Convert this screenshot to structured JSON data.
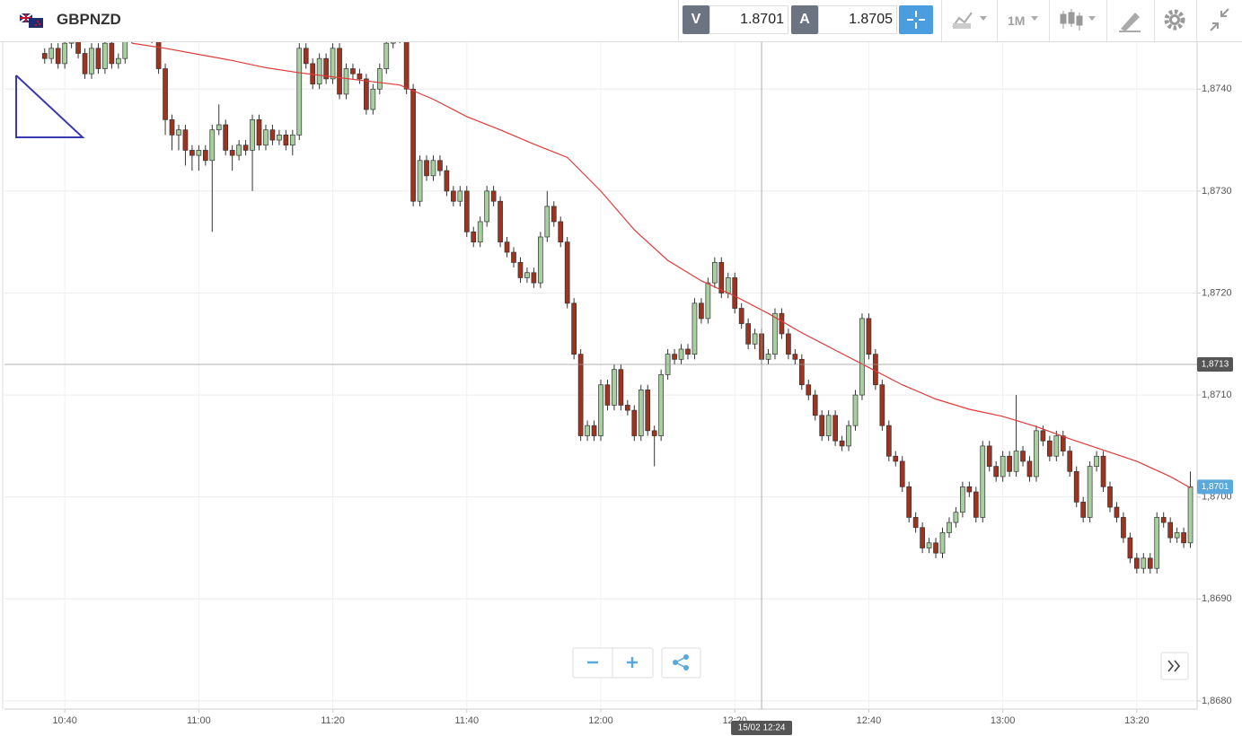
{
  "toolbar": {
    "symbol": "GBPNZD",
    "bid_label": "V",
    "bid": 1.8701,
    "ask_label": "A",
    "ask": 1.8705,
    "timeframe": "1M"
  },
  "chart_data": {
    "type": "candlestick",
    "up_color": "#a8cfa0",
    "down_color": "#9e3320",
    "ma_color": "#e03a3a",
    "xlim": [
      "10:31",
      "13:29"
    ],
    "xticks": [
      "10:40",
      "11:00",
      "11:20",
      "11:40",
      "12:00",
      "12:20",
      "12:40",
      "13:00",
      "13:20"
    ],
    "ylim": [
      1.86792,
      1.87446
    ],
    "yticks": [
      {
        "value": 1.868,
        "label": "1,8680"
      },
      {
        "value": 1.869,
        "label": "1,8690"
      },
      {
        "value": 1.87,
        "label": "1,8700"
      },
      {
        "value": 1.871,
        "label": "1,8710"
      },
      {
        "value": 1.872,
        "label": "1,8720"
      },
      {
        "value": 1.873,
        "label": "1,8730"
      },
      {
        "value": 1.874,
        "label": "1,8740"
      }
    ],
    "grid": true,
    "crosshair": {
      "x": "12:24",
      "x_label": "15/02 12:24",
      "y": 1.8713,
      "y_label": "1,8713"
    },
    "last_price": {
      "value": 1.8701,
      "label": "1,8701"
    },
    "x": [
      "10:37",
      "10:38",
      "10:39",
      "10:40",
      "10:41",
      "10:42",
      "10:43",
      "10:44",
      "10:45",
      "10:46",
      "10:47",
      "10:48",
      "10:49",
      "10:50",
      "10:51",
      "10:52",
      "10:53",
      "10:54",
      "10:55",
      "10:56",
      "10:57",
      "10:58",
      "10:59",
      "11:00",
      "11:01",
      "11:02",
      "11:03",
      "11:04",
      "11:05",
      "11:06",
      "11:07",
      "11:08",
      "11:09",
      "11:10",
      "11:11",
      "11:12",
      "11:13",
      "11:14",
      "11:15",
      "11:16",
      "11:17",
      "11:18",
      "11:19",
      "11:20",
      "11:21",
      "11:22",
      "11:23",
      "11:24",
      "11:25",
      "11:26",
      "11:27",
      "11:28",
      "11:29",
      "11:30",
      "11:31",
      "11:32",
      "11:33",
      "11:34",
      "11:35",
      "11:36",
      "11:37",
      "11:38",
      "11:39",
      "11:40",
      "11:41",
      "11:42",
      "11:43",
      "11:44",
      "11:45",
      "11:46",
      "11:47",
      "11:48",
      "11:49",
      "11:50",
      "11:51",
      "11:52",
      "11:53",
      "11:54",
      "11:55",
      "11:56",
      "11:57",
      "11:58",
      "11:59",
      "12:00",
      "12:01",
      "12:02",
      "12:03",
      "12:04",
      "12:05",
      "12:06",
      "12:07",
      "12:08",
      "12:09",
      "12:10",
      "12:11",
      "12:12",
      "12:13",
      "12:14",
      "12:15",
      "12:16",
      "12:17",
      "12:18",
      "12:19",
      "12:20",
      "12:21",
      "12:22",
      "12:23",
      "12:24",
      "12:25",
      "12:26",
      "12:27",
      "12:28",
      "12:29",
      "12:30",
      "12:31",
      "12:32",
      "12:33",
      "12:34",
      "12:35",
      "12:36",
      "12:37",
      "12:38",
      "12:39",
      "12:40",
      "12:41",
      "12:42",
      "12:43",
      "12:44",
      "12:45",
      "12:46",
      "12:47",
      "12:48",
      "12:49",
      "12:50",
      "12:51",
      "12:52",
      "12:53",
      "12:54",
      "12:55",
      "12:56",
      "12:57",
      "12:58",
      "12:59",
      "13:00",
      "13:01",
      "13:02",
      "13:03",
      "13:04",
      "13:05",
      "13:06",
      "13:07",
      "13:08",
      "13:09",
      "13:10",
      "13:11",
      "13:12",
      "13:13",
      "13:14",
      "13:15",
      "13:16",
      "13:17",
      "13:18",
      "13:19",
      "13:20",
      "13:21",
      "13:22",
      "13:23",
      "13:24",
      "13:25",
      "13:26",
      "13:27",
      "13:28"
    ],
    "open": [
      1.87435,
      1.8743,
      1.8744,
      1.87425,
      1.87445,
      1.8745,
      1.87435,
      1.87415,
      1.8744,
      1.8742,
      1.87445,
      1.87425,
      1.8743,
      1.8745,
      1.87455,
      1.8746,
      1.87455,
      1.8745,
      1.8742,
      1.8737,
      1.87355,
      1.8736,
      1.8734,
      1.87335,
      1.8734,
      1.8733,
      1.8736,
      1.87365,
      1.8734,
      1.87335,
      1.87345,
      1.8734,
      1.8737,
      1.87345,
      1.8736,
      1.8735,
      1.87355,
      1.87345,
      1.87355,
      1.8744,
      1.87425,
      1.87405,
      1.8743,
      1.8741,
      1.8744,
      1.87395,
      1.8742,
      1.87415,
      1.8741,
      1.8738,
      1.874,
      1.8742,
      1.87445,
      1.8745,
      1.87455,
      1.874,
      1.8729,
      1.8733,
      1.87315,
      1.8733,
      1.8732,
      1.873,
      1.8729,
      1.873,
      1.8726,
      1.8725,
      1.8727,
      1.873,
      1.8729,
      1.8725,
      1.8724,
      1.8723,
      1.87215,
      1.8722,
      1.8721,
      1.87255,
      1.87285,
      1.8727,
      1.8725,
      1.8719,
      1.8714,
      1.8706,
      1.8707,
      1.8706,
      1.8711,
      1.8709,
      1.87125,
      1.8709,
      1.87085,
      1.8706,
      1.87105,
      1.87065,
      1.8706,
      1.8712,
      1.8714,
      1.87135,
      1.87145,
      1.8714,
      1.8719,
      1.87175,
      1.8721,
      1.8723,
      1.872,
      1.87215,
      1.87185,
      1.8717,
      1.8715,
      1.8716,
      1.87135,
      1.8714,
      1.8718,
      1.8716,
      1.8714,
      1.87135,
      1.8711,
      1.871,
      1.8708,
      1.8706,
      1.8708,
      1.87055,
      1.8705,
      1.8707,
      1.871,
      1.87175,
      1.8714,
      1.8711,
      1.8707,
      1.8704,
      1.87035,
      1.8701,
      1.8698,
      1.8697,
      1.8695,
      1.86955,
      1.86945,
      1.86965,
      1.86975,
      1.86985,
      1.8701,
      1.87005,
      1.8698,
      1.8705,
      1.8703,
      1.8702,
      1.8704,
      1.87025,
      1.87045,
      1.87035,
      1.8702,
      1.87065,
      1.87055,
      1.8704,
      1.8706,
      1.87045,
      1.87025,
      1.86995,
      1.8698,
      1.8703,
      1.8704,
      1.8701,
      1.8699,
      1.8698,
      1.8696,
      1.8694,
      1.8693,
      1.8694,
      1.8693,
      1.8698,
      1.86975,
      1.8696,
      1.86965,
      1.86955
    ],
    "high": [
      1.8744,
      1.87445,
      1.87445,
      1.8745,
      1.87455,
      1.87455,
      1.8744,
      1.87445,
      1.87445,
      1.8745,
      1.8745,
      1.87435,
      1.87455,
      1.8746,
      1.87465,
      1.87465,
      1.8746,
      1.87455,
      1.87425,
      1.87375,
      1.87365,
      1.87365,
      1.87345,
      1.87345,
      1.87345,
      1.87365,
      1.87385,
      1.8737,
      1.87345,
      1.8735,
      1.8735,
      1.87375,
      1.87375,
      1.87365,
      1.87365,
      1.8736,
      1.8736,
      1.8736,
      1.87445,
      1.87445,
      1.8743,
      1.87435,
      1.87435,
      1.87445,
      1.87445,
      1.87425,
      1.87425,
      1.8742,
      1.87415,
      1.87405,
      1.87425,
      1.87455,
      1.8746,
      1.8746,
      1.8746,
      1.87405,
      1.87335,
      1.87335,
      1.87335,
      1.87335,
      1.87325,
      1.87305,
      1.87305,
      1.87305,
      1.87265,
      1.87275,
      1.87305,
      1.87305,
      1.87295,
      1.87255,
      1.87245,
      1.87235,
      1.87225,
      1.87225,
      1.8726,
      1.873,
      1.8729,
      1.87275,
      1.87255,
      1.87195,
      1.87145,
      1.87075,
      1.87075,
      1.87115,
      1.87115,
      1.8713,
      1.8713,
      1.87095,
      1.8709,
      1.8711,
      1.8711,
      1.8707,
      1.87125,
      1.87145,
      1.87145,
      1.8715,
      1.8715,
      1.87195,
      1.87195,
      1.87215,
      1.87235,
      1.87235,
      1.8722,
      1.8722,
      1.8719,
      1.87175,
      1.87165,
      1.87165,
      1.87145,
      1.87185,
      1.87185,
      1.87165,
      1.87145,
      1.8714,
      1.87115,
      1.87105,
      1.87085,
      1.87085,
      1.87085,
      1.8706,
      1.87075,
      1.87105,
      1.8718,
      1.8718,
      1.87145,
      1.87115,
      1.87075,
      1.87045,
      1.8704,
      1.87015,
      1.86985,
      1.86975,
      1.8696,
      1.8696,
      1.8697,
      1.8698,
      1.8699,
      1.87015,
      1.87015,
      1.8701,
      1.87055,
      1.87055,
      1.87035,
      1.87045,
      1.87045,
      1.871,
      1.8705,
      1.8704,
      1.8707,
      1.8707,
      1.8706,
      1.87065,
      1.87065,
      1.8705,
      1.8703,
      1.87,
      1.87035,
      1.87045,
      1.87045,
      1.87015,
      1.86995,
      1.86985,
      1.86965,
      1.86945,
      1.86945,
      1.86945,
      1.86985,
      1.86985,
      1.8698,
      1.8697,
      1.8697,
      1.87025
    ],
    "low": [
      1.87425,
      1.87425,
      1.8742,
      1.8742,
      1.8744,
      1.8743,
      1.8741,
      1.8741,
      1.87415,
      1.87415,
      1.8742,
      1.8742,
      1.87425,
      1.87445,
      1.8745,
      1.8745,
      1.87445,
      1.87415,
      1.87355,
      1.8734,
      1.8734,
      1.87325,
      1.8732,
      1.8732,
      1.87325,
      1.8726,
      1.87355,
      1.87335,
      1.8732,
      1.8733,
      1.87335,
      1.873,
      1.8734,
      1.8734,
      1.87345,
      1.87345,
      1.8734,
      1.87335,
      1.8735,
      1.8742,
      1.874,
      1.874,
      1.87405,
      1.87405,
      1.8739,
      1.8739,
      1.8741,
      1.87405,
      1.87375,
      1.87375,
      1.87395,
      1.87415,
      1.8744,
      1.87445,
      1.87395,
      1.87285,
      1.87285,
      1.8731,
      1.8731,
      1.87315,
      1.87295,
      1.87285,
      1.87285,
      1.87255,
      1.87245,
      1.87245,
      1.87265,
      1.87285,
      1.87245,
      1.87235,
      1.87225,
      1.8721,
      1.8721,
      1.87205,
      1.87205,
      1.8725,
      1.87265,
      1.87245,
      1.87185,
      1.87135,
      1.87055,
      1.87055,
      1.87055,
      1.87055,
      1.87085,
      1.87085,
      1.87085,
      1.8708,
      1.87055,
      1.87055,
      1.8706,
      1.8703,
      1.87055,
      1.87115,
      1.8713,
      1.8713,
      1.87135,
      1.87135,
      1.8717,
      1.8717,
      1.87205,
      1.87195,
      1.87195,
      1.8718,
      1.87165,
      1.87145,
      1.87145,
      1.8713,
      1.8713,
      1.87135,
      1.87155,
      1.87135,
      1.8713,
      1.87105,
      1.87095,
      1.87075,
      1.87055,
      1.87055,
      1.8705,
      1.87045,
      1.87045,
      1.87065,
      1.87095,
      1.87135,
      1.87105,
      1.87065,
      1.87035,
      1.8703,
      1.87005,
      1.86975,
      1.86965,
      1.86945,
      1.86945,
      1.8694,
      1.8694,
      1.8696,
      1.8697,
      1.8698,
      1.87,
      1.86975,
      1.86975,
      1.87025,
      1.87015,
      1.87015,
      1.8702,
      1.8702,
      1.8703,
      1.87015,
      1.87015,
      1.8705,
      1.87035,
      1.87035,
      1.8704,
      1.8702,
      1.8699,
      1.86975,
      1.86975,
      1.87025,
      1.87005,
      1.86985,
      1.86975,
      1.86955,
      1.86935,
      1.86925,
      1.86925,
      1.86925,
      1.86925,
      1.8697,
      1.86955,
      1.86955,
      1.8695,
      1.8695
    ],
    "close": [
      1.8743,
      1.8744,
      1.87425,
      1.87445,
      1.8745,
      1.87435,
      1.87415,
      1.8744,
      1.8742,
      1.87445,
      1.87425,
      1.8743,
      1.8745,
      1.87455,
      1.8746,
      1.87455,
      1.8745,
      1.8742,
      1.8737,
      1.87355,
      1.8736,
      1.8734,
      1.87335,
      1.8734,
      1.8733,
      1.8736,
      1.87365,
      1.8734,
      1.87335,
      1.87345,
      1.8734,
      1.8737,
      1.87345,
      1.8736,
      1.8735,
      1.87355,
      1.87345,
      1.87355,
      1.8744,
      1.87425,
      1.87405,
      1.8743,
      1.8741,
      1.8744,
      1.87395,
      1.8742,
      1.87415,
      1.8741,
      1.8738,
      1.874,
      1.8742,
      1.87445,
      1.8745,
      1.87455,
      1.874,
      1.8729,
      1.8733,
      1.87315,
      1.8733,
      1.8732,
      1.873,
      1.8729,
      1.873,
      1.8726,
      1.8725,
      1.8727,
      1.873,
      1.8729,
      1.8725,
      1.8724,
      1.8723,
      1.87215,
      1.8722,
      1.8721,
      1.87255,
      1.87285,
      1.8727,
      1.8725,
      1.8719,
      1.8714,
      1.8706,
      1.8707,
      1.8706,
      1.8711,
      1.8709,
      1.87125,
      1.8709,
      1.87085,
      1.8706,
      1.87105,
      1.87065,
      1.8706,
      1.8712,
      1.8714,
      1.87135,
      1.87145,
      1.8714,
      1.8719,
      1.87175,
      1.8721,
      1.8723,
      1.872,
      1.87215,
      1.87185,
      1.8717,
      1.8715,
      1.8716,
      1.87135,
      1.8714,
      1.8718,
      1.8716,
      1.8714,
      1.87135,
      1.8711,
      1.871,
      1.8708,
      1.8706,
      1.8708,
      1.87055,
      1.8705,
      1.8707,
      1.871,
      1.87175,
      1.8714,
      1.8711,
      1.8707,
      1.8704,
      1.87035,
      1.8701,
      1.8698,
      1.8697,
      1.8695,
      1.86955,
      1.86945,
      1.86965,
      1.86975,
      1.86985,
      1.8701,
      1.87005,
      1.8698,
      1.8705,
      1.8703,
      1.8702,
      1.8704,
      1.87025,
      1.87045,
      1.87035,
      1.8702,
      1.87065,
      1.87055,
      1.8704,
      1.8706,
      1.87045,
      1.87025,
      1.86995,
      1.8698,
      1.8703,
      1.8704,
      1.8701,
      1.8699,
      1.8698,
      1.8696,
      1.8694,
      1.8693,
      1.8694,
      1.8693,
      1.8698,
      1.86975,
      1.8696,
      1.86965,
      1.86955,
      1.8701
    ],
    "ma_x": [
      "10:50",
      "10:55",
      "11:00",
      "11:05",
      "11:10",
      "11:15",
      "11:20",
      "11:25",
      "11:30",
      "11:35",
      "11:40",
      "11:45",
      "11:50",
      "11:55",
      "12:00",
      "12:05",
      "12:10",
      "12:15",
      "12:20",
      "12:25",
      "12:30",
      "12:35",
      "12:40",
      "12:45",
      "12:50",
      "12:55",
      "13:00",
      "13:05",
      "13:10",
      "13:15",
      "13:20",
      "13:25",
      "13:28"
    ],
    "ma_values": [
      1.87445,
      1.8744,
      1.87434,
      1.87428,
      1.87421,
      1.87416,
      1.87412,
      1.87408,
      1.87404,
      1.8739,
      1.87373,
      1.8736,
      1.87346,
      1.87333,
      1.873,
      1.87262,
      1.87232,
      1.87212,
      1.87197,
      1.8718,
      1.87161,
      1.87144,
      1.87127,
      1.8711,
      1.87096,
      1.87086,
      1.87079,
      1.87069,
      1.87057,
      1.87046,
      1.87035,
      1.8702,
      1.87009
    ]
  }
}
